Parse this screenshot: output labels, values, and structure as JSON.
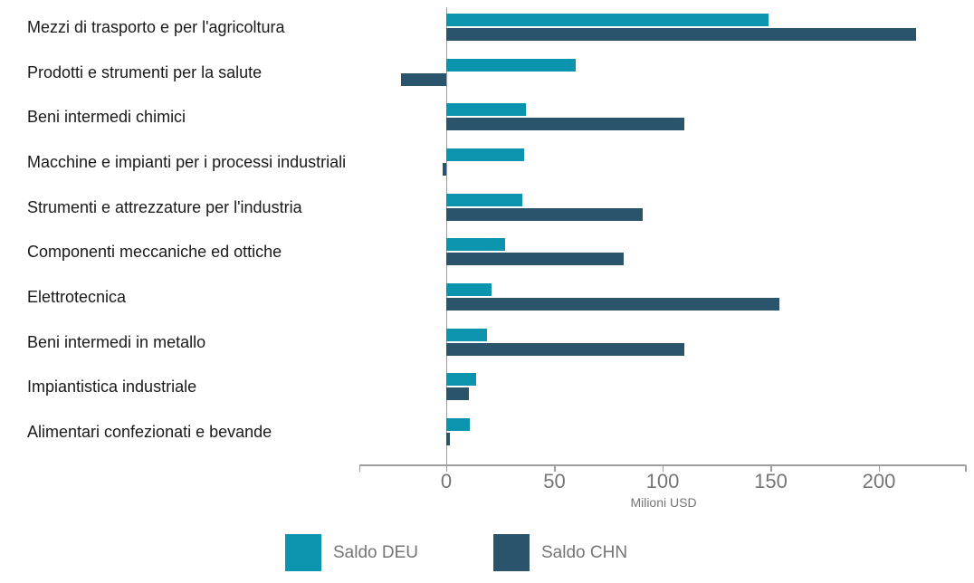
{
  "chart_data": {
    "type": "bar",
    "orientation": "horizontal",
    "title": "",
    "xlabel": "Milioni USD",
    "ylabel": "",
    "unit": "Milioni USD",
    "categories": [
      "Mezzi di trasporto e per l'agricoltura",
      "Prodotti e strumenti per la salute",
      "Beni intermedi chimici",
      "Macchine e impianti per i processi industriali",
      "Strumenti e attrezzature per l'industria",
      "Componenti meccaniche ed ottiche",
      "Elettrotecnica",
      "Beni intermedi in metallo",
      "Impiantistica industriale",
      "Alimentari confezionati e bevande"
    ],
    "series": [
      {
        "name": "Saldo DEU",
        "color": "#0c93ad",
        "values": [
          149,
          60,
          37,
          36,
          35,
          27,
          21,
          19,
          14,
          11
        ]
      },
      {
        "name": "Saldo CHN",
        "color": "#2a546b",
        "values": [
          217,
          -21,
          110,
          -1.5,
          91,
          82,
          154,
          110,
          10.5,
          1.5
        ]
      }
    ],
    "x_ticks": [
      0,
      50,
      100,
      150,
      200
    ],
    "x_tick_labels": [
      "0",
      "50",
      "100",
      "150",
      "200"
    ],
    "xlim": [
      -40,
      240
    ],
    "grid": "zero-line-only",
    "legend_position": "bottom",
    "colors": {
      "axis": "#9e9e9e",
      "tick_text": "#757575",
      "category_text": "#1a1a1a",
      "legend_text": "#757575"
    }
  }
}
